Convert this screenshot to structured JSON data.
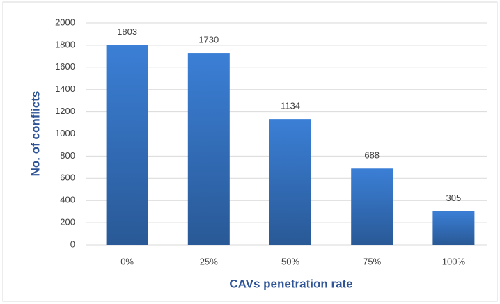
{
  "chart_data": {
    "type": "bar",
    "x_label": "CAVs penetration rate",
    "y_label": "No. of conflicts",
    "categories": [
      "0%",
      "25%",
      "50%",
      "75%",
      "100%"
    ],
    "values": [
      1803,
      1730,
      1134,
      688,
      305
    ],
    "color": "#3b7fd6",
    "ylim": [
      0,
      2000
    ],
    "yticks": [
      0,
      200,
      400,
      600,
      800,
      1000,
      1200,
      1400,
      1600,
      1800,
      2000
    ],
    "grid": true,
    "data_labels": true
  }
}
